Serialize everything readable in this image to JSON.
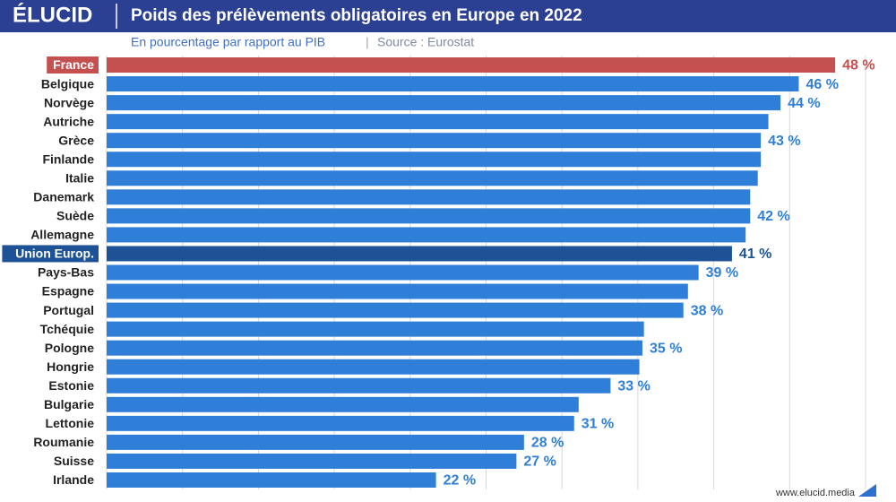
{
  "header": {
    "logo": "ÉLUCID",
    "footer": "www.elucid.media"
  },
  "chart_data": {
    "type": "hbar",
    "title": "Poids des prélèvements obligatoires en Europe en 2022",
    "subtitle": "En pourcentage par rapport au PIB",
    "source": "Source : Eurostat",
    "categories": [
      "France",
      "Belgique",
      "Norvège",
      "Autriche",
      "Grèce",
      "Finlande",
      "Italie",
      "Danemark",
      "Suède",
      "Allemagne",
      "Union Europ.",
      "Pays-Bas",
      "Espagne",
      "Portugal",
      "Tchéquie",
      "Pologne",
      "Hongrie",
      "Estonie",
      "Bulgarie",
      "Lettonie",
      "Roumanie",
      "Suisse",
      "Irlande"
    ],
    "values": [
      48,
      45.6,
      44.4,
      43.6,
      43.1,
      43.1,
      42.9,
      42.4,
      42.4,
      42.1,
      41.2,
      39.0,
      38.3,
      38.0,
      35.4,
      35.3,
      35.1,
      33.2,
      31.1,
      30.8,
      27.5,
      27.0,
      21.7
    ],
    "value_labels": [
      "48 %",
      "46 %",
      "44 %",
      null,
      "43 %",
      null,
      null,
      null,
      "42 %",
      null,
      "41 %",
      "39 %",
      null,
      "38 %",
      null,
      "35 %",
      null,
      "33 %",
      null,
      "31 %",
      "28 %",
      "27 %",
      "22 %"
    ],
    "color": "#2f7fd8",
    "colors": [
      "#c4504f",
      "#2f7fd8",
      "#2f7fd8",
      "#2f7fd8",
      "#2f7fd8",
      "#2f7fd8",
      "#2f7fd8",
      "#2f7fd8",
      "#2f7fd8",
      "#2f7fd8",
      "#1d5296",
      "#2f7fd8",
      "#2f7fd8",
      "#2f7fd8",
      "#2f7fd8",
      "#2f7fd8",
      "#2f7fd8",
      "#2f7fd8",
      "#2f7fd8",
      "#2f7fd8",
      "#2f7fd8",
      "#2f7fd8",
      "#2f7fd8"
    ],
    "xlim": [
      0,
      50
    ],
    "xticks": [
      0,
      5,
      10,
      15,
      20,
      25,
      30,
      35,
      40,
      45,
      50
    ],
    "grid": true
  }
}
